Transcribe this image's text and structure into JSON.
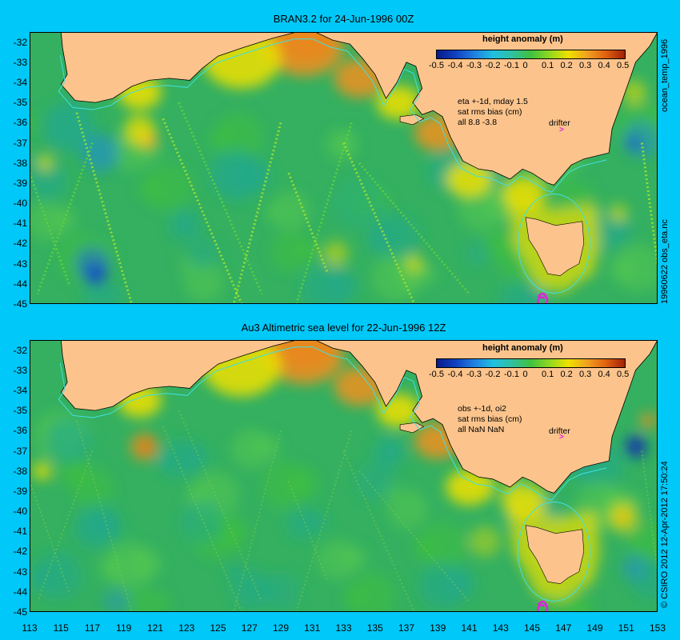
{
  "panels": [
    {
      "title": "BRAN3.2 for 24-Jun-1996 00Z",
      "stats": {
        "line1": "eta +-1d, mday 1.5",
        "line2": "sat rms bias (cm)",
        "line3": "all 8.8 -3.8"
      },
      "side_label": "19960622 obs_eta.nc"
    },
    {
      "title": "Au3 Altimetric sea level  for 22-Jun-1996 12Z",
      "stats": {
        "line1": "obs +-1d, oi2",
        "line2": "sat rms bias (cm)",
        "line3": "all NaN NaN"
      },
      "side_label": "© CSIRO 2012   12-Apr-2012 17:50:24"
    }
  ],
  "top_side_label": "ocean_temp_1996",
  "legend": {
    "title": "height anomaly (m)",
    "ticks": [
      "-0.5",
      "-0.4",
      "-0.3",
      "-0.2",
      "-0.1",
      "0",
      "0.1",
      "0.2",
      "0.3",
      "0.4",
      "0.5"
    ]
  },
  "drifter_label": "drifter",
  "y_ticks": [
    "-32",
    "-33",
    "-34",
    "-35",
    "-36",
    "-37",
    "-38",
    "-39",
    "-40",
    "-41",
    "-42",
    "-43",
    "-44",
    "-45"
  ],
  "x_ticks": [
    "113",
    "115",
    "117",
    "119",
    "121",
    "123",
    "125",
    "127",
    "129",
    "131",
    "133",
    "135",
    "137",
    "139",
    "141",
    "143",
    "145",
    "147",
    "149",
    "151",
    "153"
  ],
  "colors": {
    "background": "#00c8f8",
    "land": "#fcc48c",
    "ocean_base": "#34b060",
    "ocean_green": "#40c040",
    "ocean_teal": "#20a890",
    "coastal_yellow": "#f0e000",
    "coastal_orange": "#f09020",
    "coastal_red": "#c04008",
    "low_blue": "#1030b0",
    "contour_cyan": "#40e0e0"
  }
}
